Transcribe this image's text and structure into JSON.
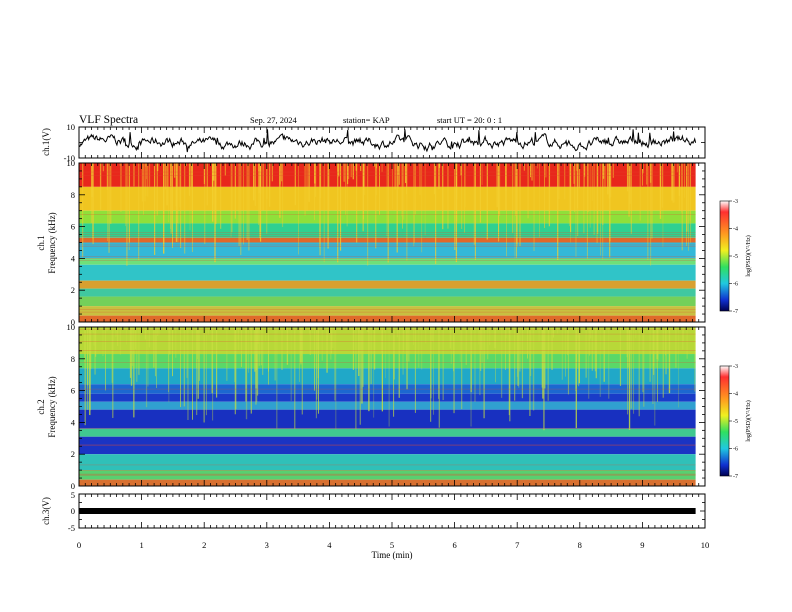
{
  "header": {
    "title": "VLF Spectra",
    "date": "Sep. 27, 2024",
    "station": "station= KAP",
    "start_ut": "start  UT =   20: 0  : 1"
  },
  "chart_data": [
    {
      "type": "line",
      "panel": "ch1-waveform",
      "ylabel": "ch.1(V)",
      "ylim": [
        -10,
        10
      ],
      "y_ticklabels": [
        "10",
        "-10"
      ],
      "xlim": [
        0,
        10
      ],
      "data_end_min": 9.85
    },
    {
      "type": "heatmap",
      "panel": "ch1-spectrogram",
      "ylabel_lines": [
        "ch.1",
        "Frequency (kHz)"
      ],
      "ylim": [
        0,
        10
      ],
      "y_ticklabels": [
        "0",
        "2",
        "4",
        "6",
        "8",
        "10"
      ],
      "xlim": [
        0,
        10
      ],
      "data_end_min": 9.85,
      "colorbar": {
        "label": "log(PSD)(V²/Hz)",
        "range": [
          -7,
          -3
        ],
        "ticklabels": [
          "-3",
          "-4",
          "-5",
          "-6",
          "-7"
        ]
      },
      "bands": [
        {
          "f_from": 8.5,
          "f_to": 10,
          "color": "#e8271c"
        },
        {
          "f_from": 7.0,
          "f_to": 8.5,
          "color": "#f0c520"
        },
        {
          "f_from": 6.2,
          "f_to": 7.0,
          "color": "#8fe03a"
        },
        {
          "f_from": 5.3,
          "f_to": 6.2,
          "color": "#2fd090"
        },
        {
          "f_from": 5.0,
          "f_to": 5.3,
          "color": "#e0682a"
        },
        {
          "f_from": 4.0,
          "f_to": 5.0,
          "color": "#33b8d8"
        },
        {
          "f_from": 3.6,
          "f_to": 4.0,
          "color": "#6fe07a"
        },
        {
          "f_from": 2.6,
          "f_to": 3.6,
          "color": "#30c4c8"
        },
        {
          "f_from": 2.1,
          "f_to": 2.6,
          "color": "#d8a030"
        },
        {
          "f_from": 1.6,
          "f_to": 2.1,
          "color": "#40c8a0"
        },
        {
          "f_from": 1.0,
          "f_to": 1.6,
          "color": "#74d05a"
        },
        {
          "f_from": 0.4,
          "f_to": 1.0,
          "color": "#c8c040"
        },
        {
          "f_from": 0.0,
          "f_to": 0.4,
          "color": "#e06a2a"
        }
      ],
      "streak_color": "#f4d030"
    },
    {
      "type": "heatmap",
      "panel": "ch2-spectrogram",
      "ylabel_lines": [
        "ch.2",
        "Frequency (kHz)"
      ],
      "ylim": [
        0,
        10
      ],
      "y_ticklabels": [
        "0",
        "2",
        "4",
        "6",
        "8",
        "10"
      ],
      "xlim": [
        0,
        10
      ],
      "data_end_min": 9.85,
      "colorbar": {
        "label": "log(PSD)(V²/Hz)",
        "range": [
          -7,
          -3
        ],
        "ticklabels": [
          "-3",
          "-4",
          "-5",
          "-6",
          "-7"
        ]
      },
      "bands": [
        {
          "f_from": 8.3,
          "f_to": 10,
          "color": "#b8d838"
        },
        {
          "f_from": 7.4,
          "f_to": 8.3,
          "color": "#5ad868"
        },
        {
          "f_from": 6.4,
          "f_to": 7.4,
          "color": "#20a8c8"
        },
        {
          "f_from": 5.8,
          "f_to": 6.4,
          "color": "#1c68d0"
        },
        {
          "f_from": 5.3,
          "f_to": 5.8,
          "color": "#1a3cc8"
        },
        {
          "f_from": 4.8,
          "f_to": 5.3,
          "color": "#30a0d0"
        },
        {
          "f_from": 3.6,
          "f_to": 4.8,
          "color": "#1830c0"
        },
        {
          "f_from": 3.1,
          "f_to": 3.6,
          "color": "#40c890"
        },
        {
          "f_from": 2.0,
          "f_to": 3.1,
          "color": "#1a34c4"
        },
        {
          "f_from": 1.0,
          "f_to": 2.0,
          "color": "#30c0b8"
        },
        {
          "f_from": 0.4,
          "f_to": 1.0,
          "color": "#58d070"
        },
        {
          "f_from": 0.0,
          "f_to": 0.4,
          "color": "#d87030"
        }
      ],
      "streak_color": "#c8e040"
    },
    {
      "type": "line",
      "panel": "ch3-waveform",
      "ylabel": "ch.3(V)",
      "ylim": [
        -5,
        5
      ],
      "y_ticklabels": [
        "5",
        "0",
        "-5"
      ],
      "xlim": [
        0,
        10
      ],
      "data_end_min": 9.85,
      "level": 0
    }
  ],
  "x_axis": {
    "title": "Time  (min)",
    "ticklabels": [
      "0",
      "1",
      "2",
      "3",
      "4",
      "5",
      "6",
      "7",
      "8",
      "9",
      "10"
    ]
  }
}
